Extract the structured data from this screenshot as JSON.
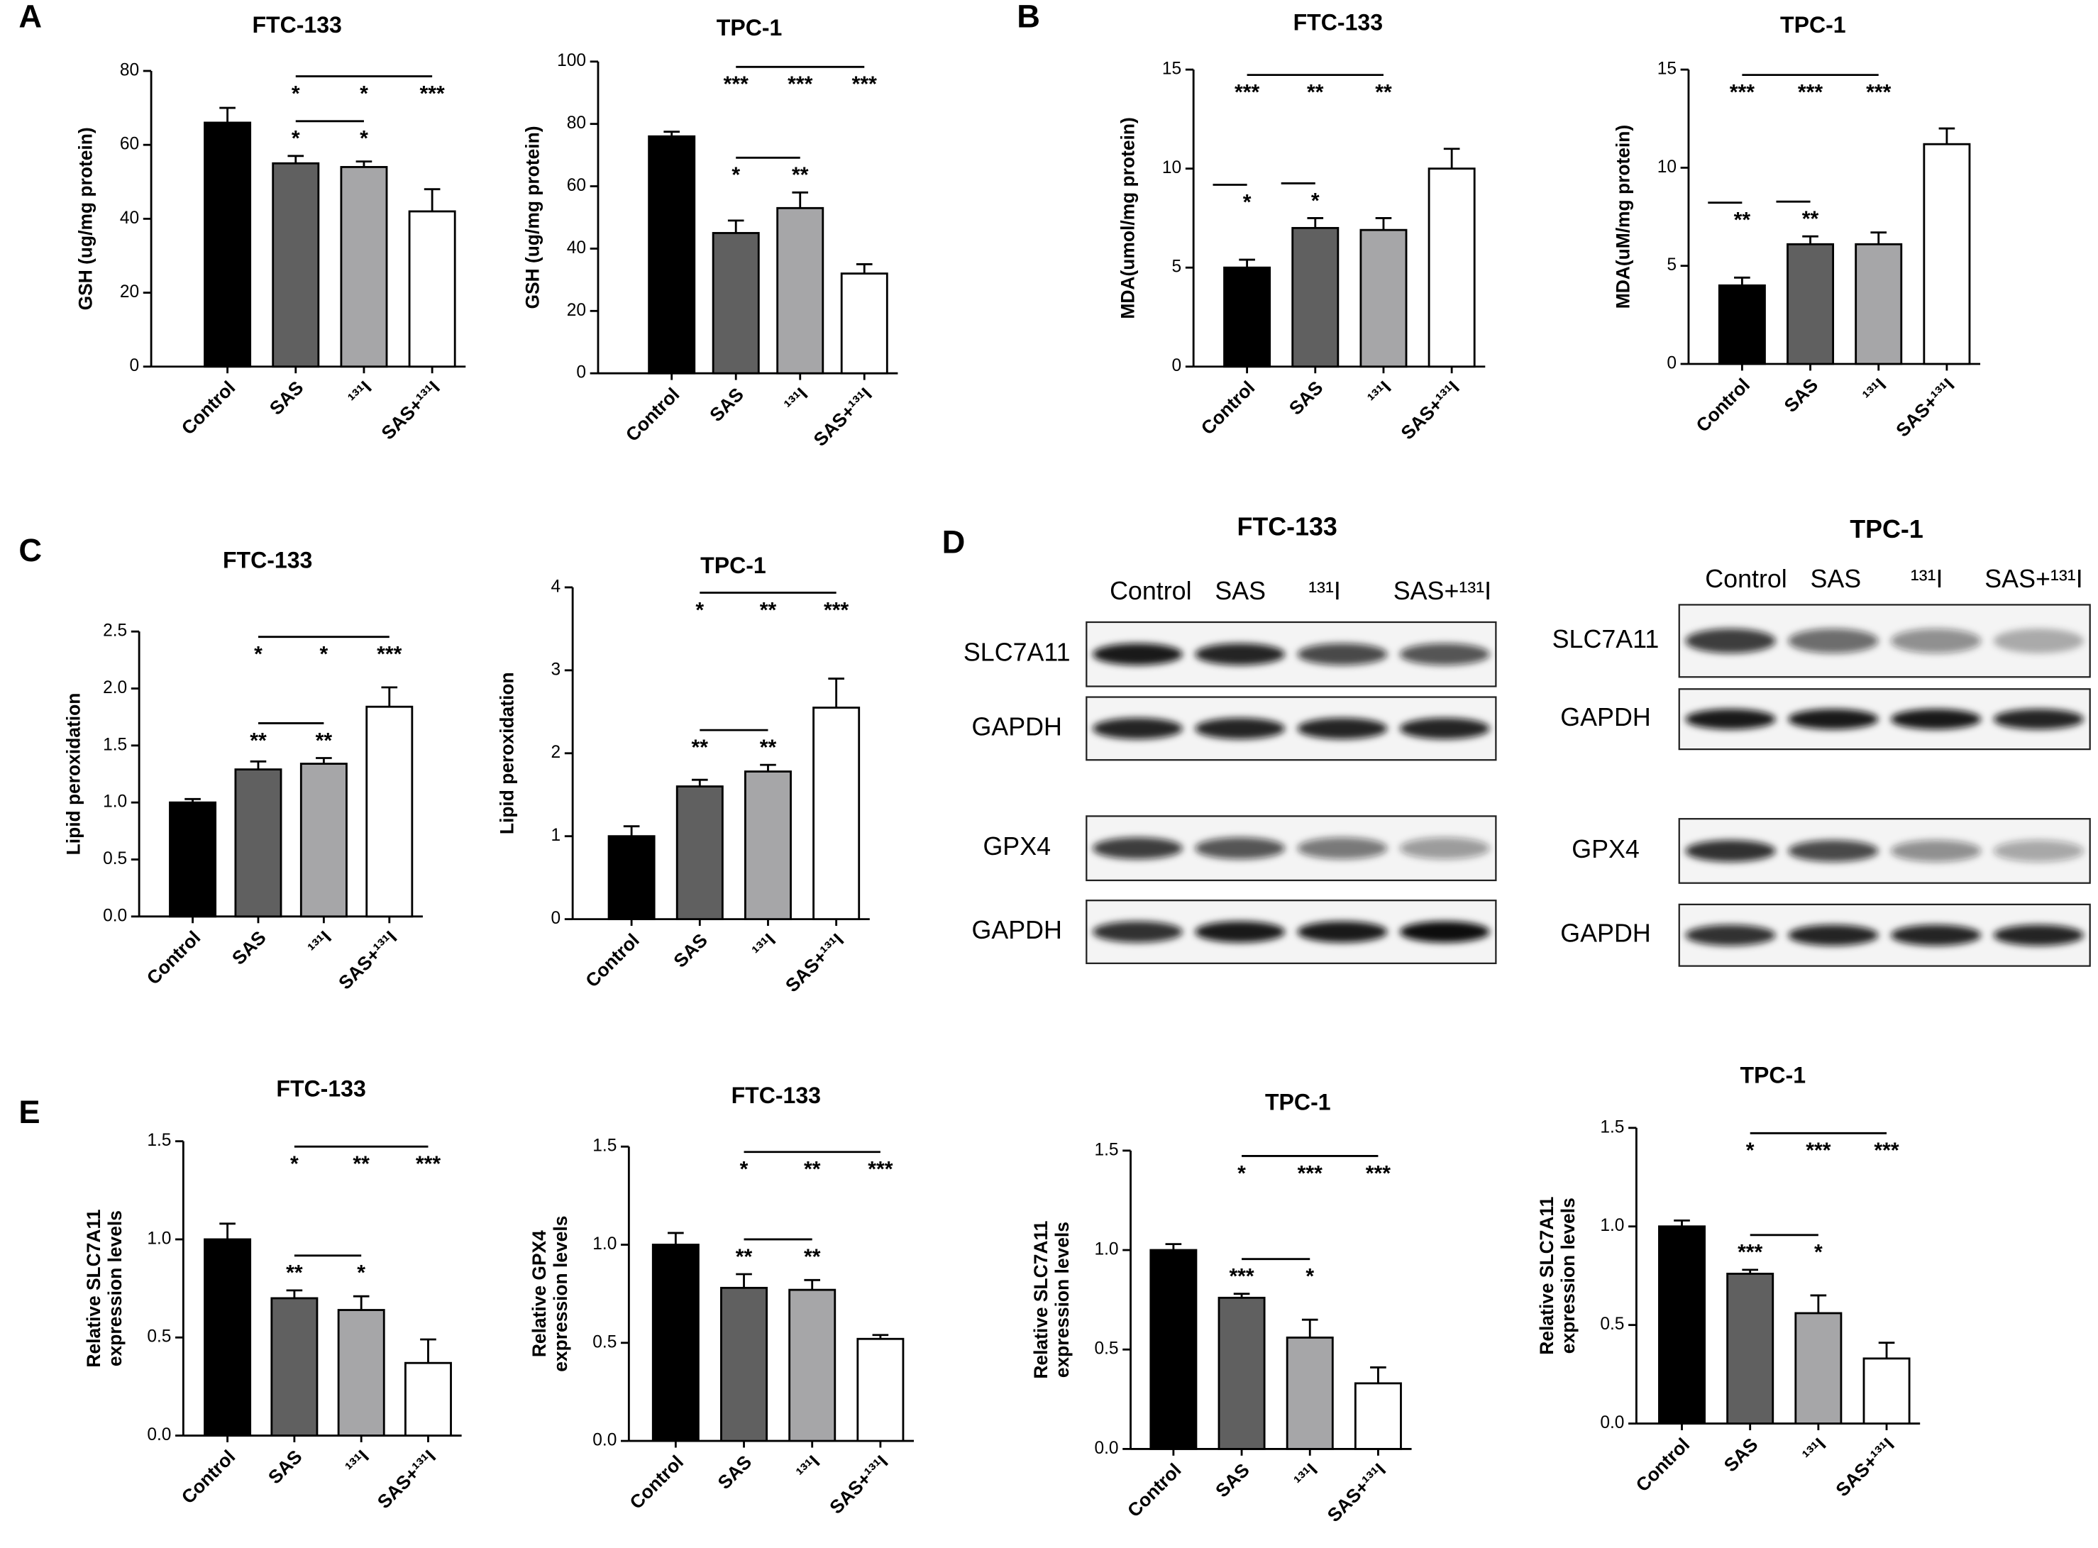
{
  "panel_labels": [
    "A",
    "B",
    "C",
    "D",
    "E"
  ],
  "chart_data": [
    {
      "type": "bar",
      "title": "FTC-133",
      "y_label": [
        "GSH (ug/mg protein)"
      ],
      "categories": [
        "Control",
        "SAS",
        "¹³¹I",
        "SAS+¹³¹I"
      ],
      "values": [
        66,
        55,
        54,
        42
      ],
      "errors": [
        4,
        2,
        1.5,
        6
      ],
      "colors": [
        "#000000",
        "#606060",
        "#a6a6a8",
        "#ffffff"
      ],
      "ylim": [
        0,
        80
      ],
      "yticks": [
        0,
        20,
        40,
        60,
        80
      ],
      "annotations": [
        [
          null,
          "*",
          "*",
          "***"
        ],
        [
          null,
          "*",
          "*",
          null
        ]
      ]
    },
    {
      "type": "bar",
      "title": "TPC-1",
      "y_label": [
        "GSH (ug/mg protein)"
      ],
      "categories": [
        "Control",
        "SAS",
        "¹³¹I",
        "SAS+¹³¹I"
      ],
      "values": [
        76,
        45,
        53,
        32
      ],
      "errors": [
        1.5,
        4,
        5,
        3
      ],
      "colors": [
        "#000000",
        "#606060",
        "#a6a6a8",
        "#ffffff"
      ],
      "ylim": [
        0,
        100
      ],
      "yticks": [
        0,
        20,
        40,
        60,
        80,
        100
      ],
      "annotations": [
        [
          null,
          "***",
          "***",
          "***"
        ],
        [
          null,
          "*",
          "**",
          null
        ]
      ]
    },
    {
      "type": "bar",
      "title": "FTC-133",
      "y_label": [
        "MDA(umol/mg protein)"
      ],
      "categories": [
        "Control",
        "SAS",
        "¹³¹I",
        "SAS+¹³¹I"
      ],
      "values": [
        5,
        7,
        6.9,
        10
      ],
      "errors": [
        0.4,
        0.5,
        0.6,
        1
      ],
      "colors": [
        "#000000",
        "#606060",
        "#a6a6a8",
        "#ffffff"
      ],
      "ylim": [
        0,
        15
      ],
      "yticks": [
        0,
        5,
        10,
        15
      ],
      "annotations": [
        [
          "***",
          "**",
          "**",
          null
        ],
        [
          null,
          "*",
          null,
          null
        ],
        [
          "*",
          null,
          null,
          null
        ]
      ]
    },
    {
      "type": "bar",
      "title": "TPC-1",
      "y_label": [
        "MDA(uM/mg protein)"
      ],
      "categories": [
        "Control",
        "SAS",
        "¹³¹I",
        "SAS+¹³¹I"
      ],
      "values": [
        4,
        6.1,
        6.1,
        11.2
      ],
      "errors": [
        0.4,
        0.4,
        0.6,
        0.8
      ],
      "colors": [
        "#000000",
        "#606060",
        "#a6a6a8",
        "#ffffff"
      ],
      "ylim": [
        0,
        15
      ],
      "yticks": [
        0,
        5,
        10,
        15
      ],
      "annotations": [
        [
          "***",
          "***",
          "***",
          null
        ],
        [
          null,
          "**",
          null,
          null
        ],
        [
          "**",
          null,
          null,
          null
        ]
      ]
    },
    {
      "type": "bar",
      "title": "FTC-133",
      "y_label": [
        "Lipid peroxidation"
      ],
      "categories": [
        "Control",
        "SAS",
        "¹³¹I",
        "SAS+¹³¹I"
      ],
      "values": [
        1.0,
        1.29,
        1.34,
        1.84
      ],
      "errors": [
        0.03,
        0.07,
        0.05,
        0.17
      ],
      "colors": [
        "#000000",
        "#606060",
        "#a6a6a8",
        "#ffffff"
      ],
      "ylim": [
        0,
        2.5
      ],
      "yticks": [
        {
          "value": 0,
          "label": "0.0"
        },
        0.5,
        {
          "value": 1,
          "label": "1.0"
        },
        1.5,
        {
          "value": 2,
          "label": "2.0"
        },
        2.5
      ],
      "annotations": [
        [
          null,
          "*",
          "*",
          "***"
        ],
        [
          null,
          "**",
          "**",
          null
        ]
      ]
    },
    {
      "type": "bar",
      "title": "TPC-1",
      "y_label": [
        "Lipid peroxidation"
      ],
      "categories": [
        "Control",
        "SAS",
        "¹³¹I",
        "SAS+¹³¹I"
      ],
      "values": [
        1.0,
        1.6,
        1.78,
        2.55
      ],
      "errors": [
        0.12,
        0.08,
        0.08,
        0.35
      ],
      "colors": [
        "#000000",
        "#606060",
        "#a6a6a8",
        "#ffffff"
      ],
      "ylim": [
        0,
        4
      ],
      "yticks": [
        0,
        1,
        2,
        3,
        4
      ],
      "annotations": [
        [
          null,
          "*",
          "**",
          "***"
        ],
        [
          null,
          "**",
          "**",
          null
        ]
      ]
    },
    {
      "type": "bar",
      "title": "FTC-133",
      "y_label": [
        "Relative SLC7A11",
        "expression levels"
      ],
      "categories": [
        "Control",
        "SAS",
        "¹³¹I",
        "SAS+¹³¹I"
      ],
      "values": [
        1.0,
        0.7,
        0.64,
        0.37
      ],
      "errors": [
        0.08,
        0.04,
        0.07,
        0.12
      ],
      "colors": [
        "#000000",
        "#606060",
        "#a6a6a8",
        "#ffffff"
      ],
      "ylim": [
        0,
        1.5
      ],
      "yticks": [
        {
          "value": 0,
          "label": "0.0"
        },
        0.5,
        {
          "value": 1,
          "label": "1.0"
        },
        1.5
      ],
      "annotations": [
        [
          null,
          "*",
          "**",
          "***"
        ],
        [
          null,
          "**",
          "*",
          null
        ]
      ]
    },
    {
      "type": "bar",
      "title": "FTC-133",
      "y_label": [
        "Relative GPX4",
        "expression levels"
      ],
      "categories": [
        "Control",
        "SAS",
        "¹³¹I",
        "SAS+¹³¹I"
      ],
      "values": [
        1.0,
        0.78,
        0.77,
        0.52
      ],
      "errors": [
        0.06,
        0.07,
        0.05,
        0.02
      ],
      "colors": [
        "#000000",
        "#606060",
        "#a6a6a8",
        "#ffffff"
      ],
      "ylim": [
        0,
        1.5
      ],
      "yticks": [
        {
          "value": 0,
          "label": "0.0"
        },
        0.5,
        {
          "value": 1,
          "label": "1.0"
        },
        1.5
      ],
      "annotations": [
        [
          null,
          "*",
          "**",
          "***"
        ],
        [
          null,
          "**",
          "**",
          null
        ]
      ]
    },
    {
      "type": "bar",
      "title": "TPC-1",
      "y_label": [
        "Relative SLC7A11",
        "expression levels"
      ],
      "categories": [
        "Control",
        "SAS",
        "¹³¹I",
        "SAS+¹³¹I"
      ],
      "values": [
        1.0,
        0.76,
        0.56,
        0.33
      ],
      "errors": [
        0.03,
        0.02,
        0.09,
        0.08
      ],
      "colors": [
        "#000000",
        "#606060",
        "#a6a6a8",
        "#ffffff"
      ],
      "ylim": [
        0,
        1.5
      ],
      "yticks": [
        {
          "value": 0,
          "label": "0.0"
        },
        0.5,
        {
          "value": 1,
          "label": "1.0"
        },
        1.5
      ],
      "annotations": [
        [
          null,
          "*",
          "***",
          "***"
        ],
        [
          null,
          "***",
          "*",
          null
        ]
      ]
    },
    {
      "type": "bar",
      "title": "TPC-1",
      "y_label": [
        "Relative SLC7A11",
        "expression levels"
      ],
      "categories": [
        "Control",
        "SAS",
        "¹³¹I",
        "SAS+¹³¹I"
      ],
      "values": [
        1.0,
        0.76,
        0.56,
        0.33
      ],
      "errors": [
        0.03,
        0.02,
        0.09,
        0.08
      ],
      "colors": [
        "#000000",
        "#606060",
        "#a6a6a8",
        "#ffffff"
      ],
      "ylim": [
        0,
        1.5
      ],
      "yticks": [
        {
          "value": 0,
          "label": "0.0"
        },
        0.5,
        {
          "value": 1,
          "label": "1.0"
        },
        1.5
      ],
      "annotations": [
        [
          null,
          "*",
          "***",
          "***"
        ],
        [
          null,
          "***",
          "*",
          null
        ]
      ]
    }
  ],
  "blots": [
    {
      "title": "FTC-133",
      "lanes": [
        "Control",
        "SAS",
        "¹³¹I",
        "SAS+¹³¹I"
      ],
      "rows": [
        "SLC7A11",
        "GAPDH",
        "GPX4",
        "GAPDH"
      ]
    },
    {
      "title": "TPC-1",
      "lanes": [
        "Control",
        "SAS",
        "¹³¹I",
        "SAS+¹³¹I"
      ],
      "rows": [
        "SLC7A11",
        "GAPDH",
        "GPX4",
        "GAPDH"
      ]
    }
  ]
}
